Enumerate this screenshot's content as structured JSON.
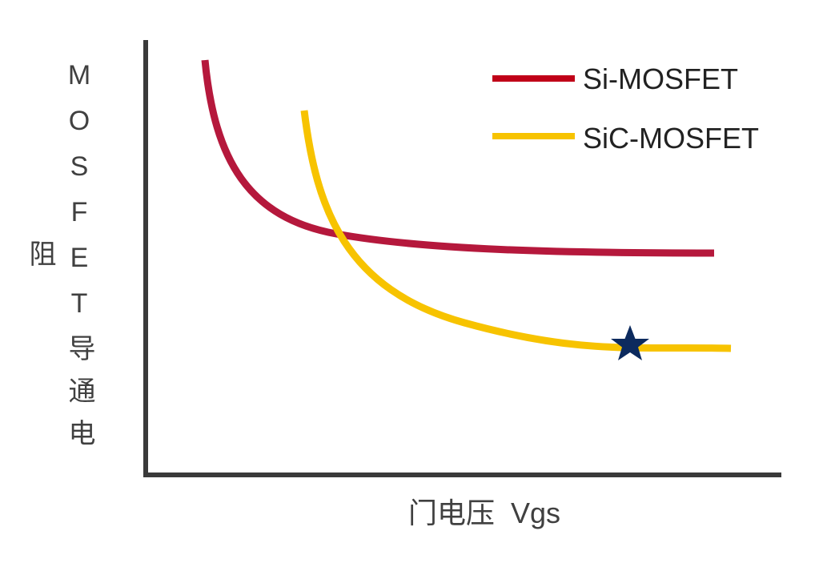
{
  "axes": {
    "y_label": "MOSFET导通电阻",
    "x_label": "门电压  Vgs"
  },
  "legend": [
    {
      "label": "Si-MOSFET"
    },
    {
      "label": "SiC-MOSFET"
    }
  ]
}
